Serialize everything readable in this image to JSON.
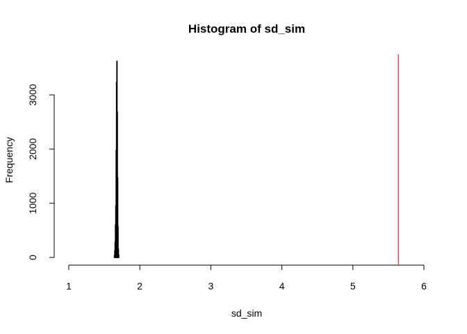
{
  "chart_data": {
    "type": "histogram",
    "title": "Histogram of sd_sim",
    "xlabel": "sd_sim",
    "ylabel": "Frequency",
    "xlim": [
      1,
      6
    ],
    "ylim": [
      0,
      3700
    ],
    "x_ticks": [
      "1",
      "2",
      "3",
      "4",
      "5",
      "6"
    ],
    "y_ticks": [
      "0",
      "1000",
      "2000",
      "3000"
    ],
    "bin_width": 0.005,
    "bins": [
      {
        "x": 1.64,
        "count": 30
      },
      {
        "x": 1.645,
        "count": 120
      },
      {
        "x": 1.65,
        "count": 280
      },
      {
        "x": 1.655,
        "count": 600
      },
      {
        "x": 1.66,
        "count": 960
      },
      {
        "x": 1.665,
        "count": 1980
      },
      {
        "x": 1.67,
        "count": 3230
      },
      {
        "x": 1.675,
        "count": 3620
      },
      {
        "x": 1.68,
        "count": 2680
      },
      {
        "x": 1.685,
        "count": 1470
      },
      {
        "x": 1.69,
        "count": 570
      },
      {
        "x": 1.695,
        "count": 150
      },
      {
        "x": 1.7,
        "count": 40
      }
    ],
    "reference_line": {
      "x": 5.64,
      "color": "#ff0000"
    },
    "bar_color": "#000000",
    "grid": false
  }
}
